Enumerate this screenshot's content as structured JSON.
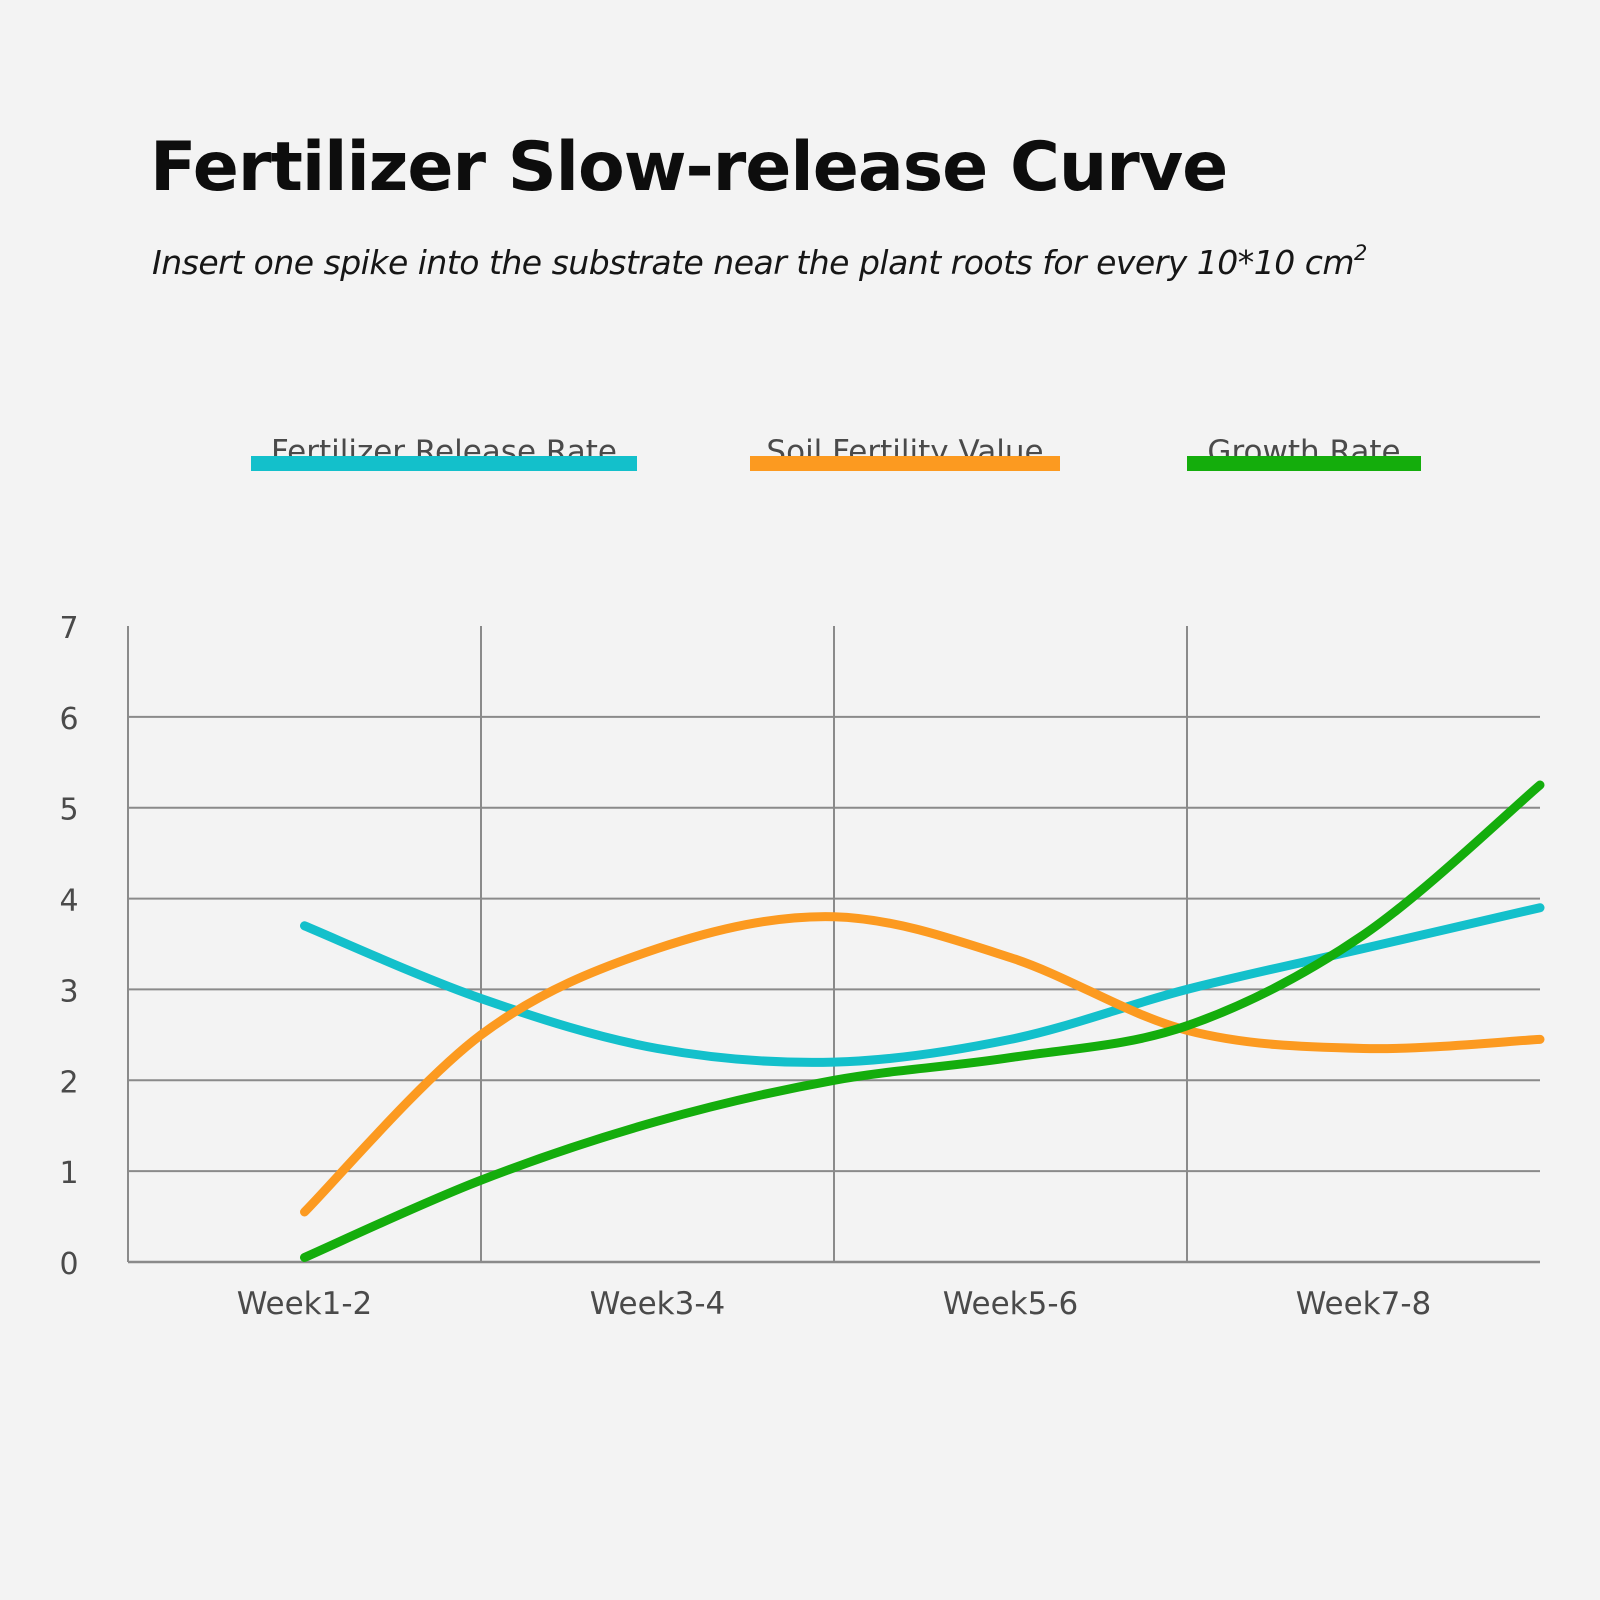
{
  "title": "Fertilizer Slow-release Curve",
  "subtitle": {
    "text": "Insert one spike into the substrate near the plant roots for every 10*10 cm",
    "superscript": "2"
  },
  "chart_data": {
    "type": "line",
    "title": "Fertilizer Slow-release Curve",
    "categories": [
      "Week1-2",
      "Week3-4",
      "Week5-6",
      "Week7-8"
    ],
    "x_range": [
      0.5,
      4.5
    ],
    "ylim": [
      0,
      7
    ],
    "yticks": [
      0,
      1,
      2,
      3,
      4,
      5,
      6,
      7
    ],
    "grid": true,
    "legend_position": "top-center",
    "series": [
      {
        "name": "Fertilizer Release Rate",
        "color": "#13c0cb",
        "points": [
          [
            1.0,
            3.7
          ],
          [
            1.5,
            2.9
          ],
          [
            2.0,
            2.35
          ],
          [
            2.5,
            2.2
          ],
          [
            3.0,
            2.45
          ],
          [
            3.5,
            3.0
          ],
          [
            4.0,
            3.45
          ],
          [
            4.5,
            3.9
          ]
        ]
      },
      {
        "name": "Soil Fertility Value",
        "color": "#fc9a20",
        "points": [
          [
            1.0,
            0.55
          ],
          [
            1.5,
            2.5
          ],
          [
            2.0,
            3.45
          ],
          [
            2.5,
            3.8
          ],
          [
            3.0,
            3.35
          ],
          [
            3.5,
            2.55
          ],
          [
            4.0,
            2.35
          ],
          [
            4.5,
            2.45
          ]
        ]
      },
      {
        "name": "Growth Rate",
        "color": "#14ad0c",
        "points": [
          [
            1.0,
            0.05
          ],
          [
            1.5,
            0.9
          ],
          [
            2.0,
            1.55
          ],
          [
            2.5,
            2.0
          ],
          [
            3.0,
            2.25
          ],
          [
            3.5,
            2.6
          ],
          [
            4.0,
            3.6
          ],
          [
            4.5,
            5.25
          ]
        ]
      }
    ]
  }
}
